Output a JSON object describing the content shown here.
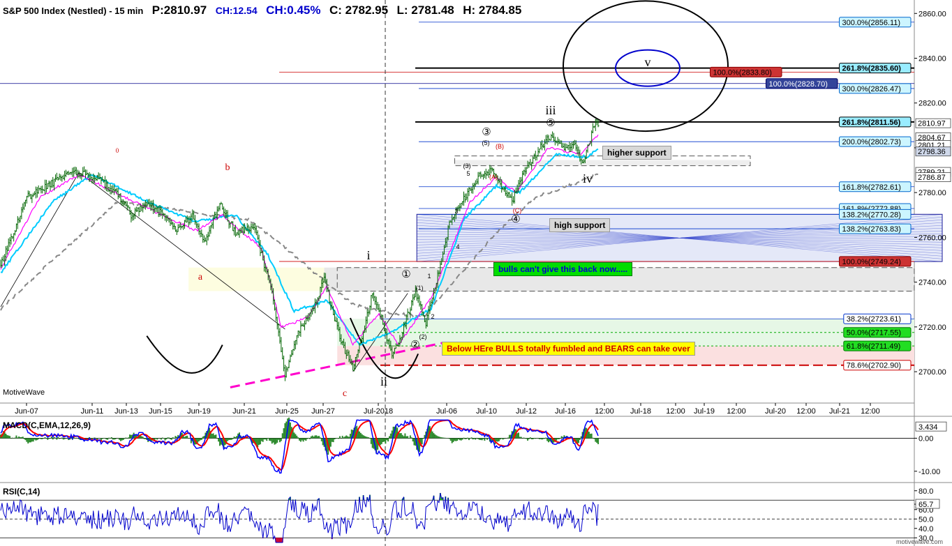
{
  "header": {
    "title": "S&P 500 Index (Nestled) - 15 min",
    "price": "P:2810.97",
    "change": "CH:12.54",
    "change_pct": "CH:0.45%",
    "close": "C: 2782.95",
    "low": "L: 2781.48",
    "high": "H: 2784.85"
  },
  "watermark": "MotiveWave",
  "watermark_small": "motivewave.com",
  "colors": {
    "price_bar": "#006400",
    "ema_fast": "#ff00ff",
    "ema_mid": "#00ccff",
    "ema_slow": "#888888",
    "macd": "#0000ff",
    "signal": "#ff0000",
    "hist": "#2e8b2e",
    "rsi": "#0000cc"
  },
  "chart_data": [
    {
      "type": "line",
      "title": "S&P 500 Index (Nestled) - 15 min",
      "y_axis_side": "right",
      "ylim": [
        2686,
        2866
      ],
      "y_ticks": [
        "2700.00",
        "2720.00",
        "2740.00",
        "2760.00",
        "2780.00",
        "2800.00",
        "2820.00",
        "2840.00",
        "2860.00"
      ],
      "x_ticks": [
        "Jun-07",
        "Jun-11",
        "Jun-13",
        "Jun-15",
        "Jun-19",
        "Jun-21",
        "Jun-25",
        "Jun-27",
        "Jul-2018",
        "Jul-06",
        "Jul-10",
        "Jul-12",
        "Jul-16",
        "12:00",
        "Jul-18",
        "12:00",
        "Jul-19",
        "12:00",
        "Jul-20",
        "12:00",
        "Jul-21",
        "12:00"
      ],
      "price_keypoints": [
        [
          0,
          2748
        ],
        [
          10,
          2762
        ],
        [
          20,
          2778
        ],
        [
          32,
          2782
        ],
        [
          48,
          2787
        ],
        [
          60,
          2789
        ],
        [
          75,
          2786
        ],
        [
          90,
          2779
        ],
        [
          100,
          2770
        ],
        [
          112,
          2776
        ],
        [
          124,
          2770
        ],
        [
          136,
          2763
        ],
        [
          147,
          2770
        ],
        [
          157,
          2758
        ],
        [
          168,
          2775
        ],
        [
          180,
          2762
        ],
        [
          194,
          2765
        ],
        [
          208,
          2735
        ],
        [
          218,
          2698
        ],
        [
          228,
          2718
        ],
        [
          240,
          2728
        ],
        [
          248,
          2742
        ],
        [
          255,
          2725
        ],
        [
          262,
          2712
        ],
        [
          270,
          2702
        ],
        [
          278,
          2718
        ],
        [
          285,
          2735
        ],
        [
          292,
          2724
        ],
        [
          300,
          2707
        ],
        [
          308,
          2718
        ],
        [
          318,
          2736
        ],
        [
          326,
          2722
        ],
        [
          334,
          2740
        ],
        [
          344,
          2766
        ],
        [
          356,
          2778
        ],
        [
          366,
          2787
        ],
        [
          376,
          2790
        ],
        [
          384,
          2783
        ],
        [
          392,
          2776
        ],
        [
          400,
          2788
        ],
        [
          410,
          2797
        ],
        [
          420,
          2805
        ],
        [
          430,
          2800
        ],
        [
          440,
          2802
        ],
        [
          446,
          2793
        ],
        [
          450,
          2800
        ],
        [
          456,
          2812
        ],
        [
          458,
          2810.97
        ]
      ],
      "ema_fast_keypoints": [
        [
          0,
          2746
        ],
        [
          30,
          2778
        ],
        [
          60,
          2788
        ],
        [
          120,
          2771
        ],
        [
          150,
          2763
        ],
        [
          170,
          2770
        ],
        [
          200,
          2755
        ],
        [
          215,
          2720
        ],
        [
          235,
          2724
        ],
        [
          250,
          2738
        ],
        [
          270,
          2712
        ],
        [
          290,
          2726
        ],
        [
          305,
          2712
        ],
        [
          330,
          2733
        ],
        [
          360,
          2776
        ],
        [
          380,
          2787
        ],
        [
          395,
          2780
        ],
        [
          420,
          2800
        ],
        [
          445,
          2797
        ],
        [
          458,
          2806
        ]
      ],
      "ema_mid_keypoints": [
        [
          0,
          2744
        ],
        [
          40,
          2776
        ],
        [
          70,
          2788
        ],
        [
          120,
          2774
        ],
        [
          150,
          2767
        ],
        [
          180,
          2770
        ],
        [
          205,
          2752
        ],
        [
          225,
          2727
        ],
        [
          250,
          2732
        ],
        [
          275,
          2712
        ],
        [
          300,
          2718
        ],
        [
          330,
          2728
        ],
        [
          355,
          2768
        ],
        [
          380,
          2783
        ],
        [
          398,
          2780
        ],
        [
          425,
          2797
        ],
        [
          450,
          2796
        ],
        [
          458,
          2800
        ]
      ],
      "ema_slow_keypoints": [
        [
          0,
          2728
        ],
        [
          40,
          2750
        ],
        [
          90,
          2776
        ],
        [
          130,
          2773
        ],
        [
          160,
          2770
        ],
        [
          190,
          2768
        ],
        [
          215,
          2757
        ],
        [
          245,
          2742
        ],
        [
          270,
          2730
        ],
        [
          300,
          2726
        ],
        [
          325,
          2725
        ],
        [
          350,
          2742
        ],
        [
          380,
          2762
        ],
        [
          410,
          2778
        ],
        [
          440,
          2784
        ],
        [
          458,
          2788
        ]
      ],
      "price_labels": [
        {
          "value": 2810.97,
          "label": "2810.97"
        },
        {
          "value": 2804.67,
          "label": "2804.67"
        },
        {
          "value": 2801.21,
          "label": "2801.21"
        },
        {
          "value": 2798.36,
          "label": "2798.36"
        },
        {
          "value": 2789.21,
          "label": "2789.21"
        },
        {
          "value": 2786.87,
          "label": "2786.87"
        }
      ],
      "fib_levels": [
        {
          "label": "300.0%(2856.11)",
          "value": 2856.11,
          "style": "cyan"
        },
        {
          "label": "261.8%(2835.60)",
          "value": 2835.6,
          "style": "cyan-bold"
        },
        {
          "label": "100.0%(2833.80)",
          "value": 2833.8,
          "style": "red"
        },
        {
          "label": "100.0%(2828.70)",
          "value": 2828.7,
          "style": "navy"
        },
        {
          "label": "300.0%(2826.47)",
          "value": 2826.47,
          "style": "cyan"
        },
        {
          "label": "261.8%(2811.56)",
          "value": 2811.56,
          "style": "cyan-bold"
        },
        {
          "label": "200.0%(2802.73)",
          "value": 2802.73,
          "style": "cyan"
        },
        {
          "label": "161.8%(2782.61)",
          "value": 2782.61,
          "style": "cyan"
        },
        {
          "label": "161.8%(2772.88)",
          "value": 2772.88,
          "style": "cyan"
        },
        {
          "label": "138.2%(2770.28)",
          "value": 2770.28,
          "style": "cyan"
        },
        {
          "label": "138.2%(2763.83)",
          "value": 2763.83,
          "style": "cyan"
        },
        {
          "label": "100.0%(2749.24)",
          "value": 2749.24,
          "style": "red"
        },
        {
          "label": "38.2%(2723.61)",
          "value": 2723.61,
          "style": "white"
        },
        {
          "label": "50.0%(2717.55)",
          "value": 2717.55,
          "style": "green"
        },
        {
          "label": "61.8%(2711.49)",
          "value": 2711.49,
          "style": "green"
        },
        {
          "label": "78.6%(2702.90)",
          "value": 2702.9,
          "style": "white-red"
        }
      ],
      "wave_labels": [
        {
          "text": "0",
          "color": "#cc0000"
        },
        {
          "text": "b",
          "color": "#cc0000"
        },
        {
          "text": "a",
          "color": "#cc0000"
        },
        {
          "text": "c",
          "color": "#cc0000"
        },
        {
          "text": "i",
          "color": "#000000"
        },
        {
          "text": "ii",
          "color": "#000000"
        },
        {
          "text": "iii",
          "color": "#000000"
        },
        {
          "text": "iv",
          "color": "#000000"
        },
        {
          "text": "v",
          "color": "#000000"
        },
        {
          "text": "①",
          "color": "#000000"
        },
        {
          "text": "②",
          "color": "#000000"
        },
        {
          "text": "③",
          "color": "#000000"
        },
        {
          "text": "④",
          "color": "#000000"
        },
        {
          "text": "⑤",
          "color": "#000000"
        },
        {
          "text": "(1)",
          "color": "#000000"
        },
        {
          "text": "(2)",
          "color": "#000000"
        },
        {
          "text": "(3)",
          "color": "#000000"
        },
        {
          "text": "(5)",
          "color": "#000000"
        },
        {
          "text": "(A)",
          "color": "#cc0000"
        },
        {
          "text": "(B)",
          "color": "#cc0000"
        },
        {
          "text": "(C)",
          "color": "#cc0000"
        },
        {
          "text": "1",
          "color": "#000000"
        },
        {
          "text": "2",
          "color": "#000000"
        },
        {
          "text": "3",
          "color": "#000000"
        },
        {
          "text": "4",
          "color": "#000000"
        },
        {
          "text": "5",
          "color": "#000000"
        }
      ],
      "annotations": [
        {
          "text": "higher support",
          "style": "gray"
        },
        {
          "text": "high support",
          "style": "gray"
        },
        {
          "text": "bulls can't give this back now.....",
          "style": "green"
        },
        {
          "text": "Below HEre BULLS totally fumbled and BEARS can take over",
          "style": "yellow"
        }
      ]
    },
    {
      "type": "line",
      "title": "MACD(C,EMA,12,26,9)",
      "y_ticks": [
        "-10.00",
        "0.00"
      ],
      "current_value": "3.434",
      "ylim": [
        -13,
        6
      ]
    },
    {
      "type": "line",
      "title": "RSI(C,14)",
      "y_ticks": [
        "30.0",
        "40.0",
        "50.0",
        "60.0",
        "65.7",
        "80.0"
      ],
      "current_value": "65.7",
      "ylim": [
        25,
        85
      ],
      "bands": [
        30,
        50,
        70
      ]
    }
  ]
}
